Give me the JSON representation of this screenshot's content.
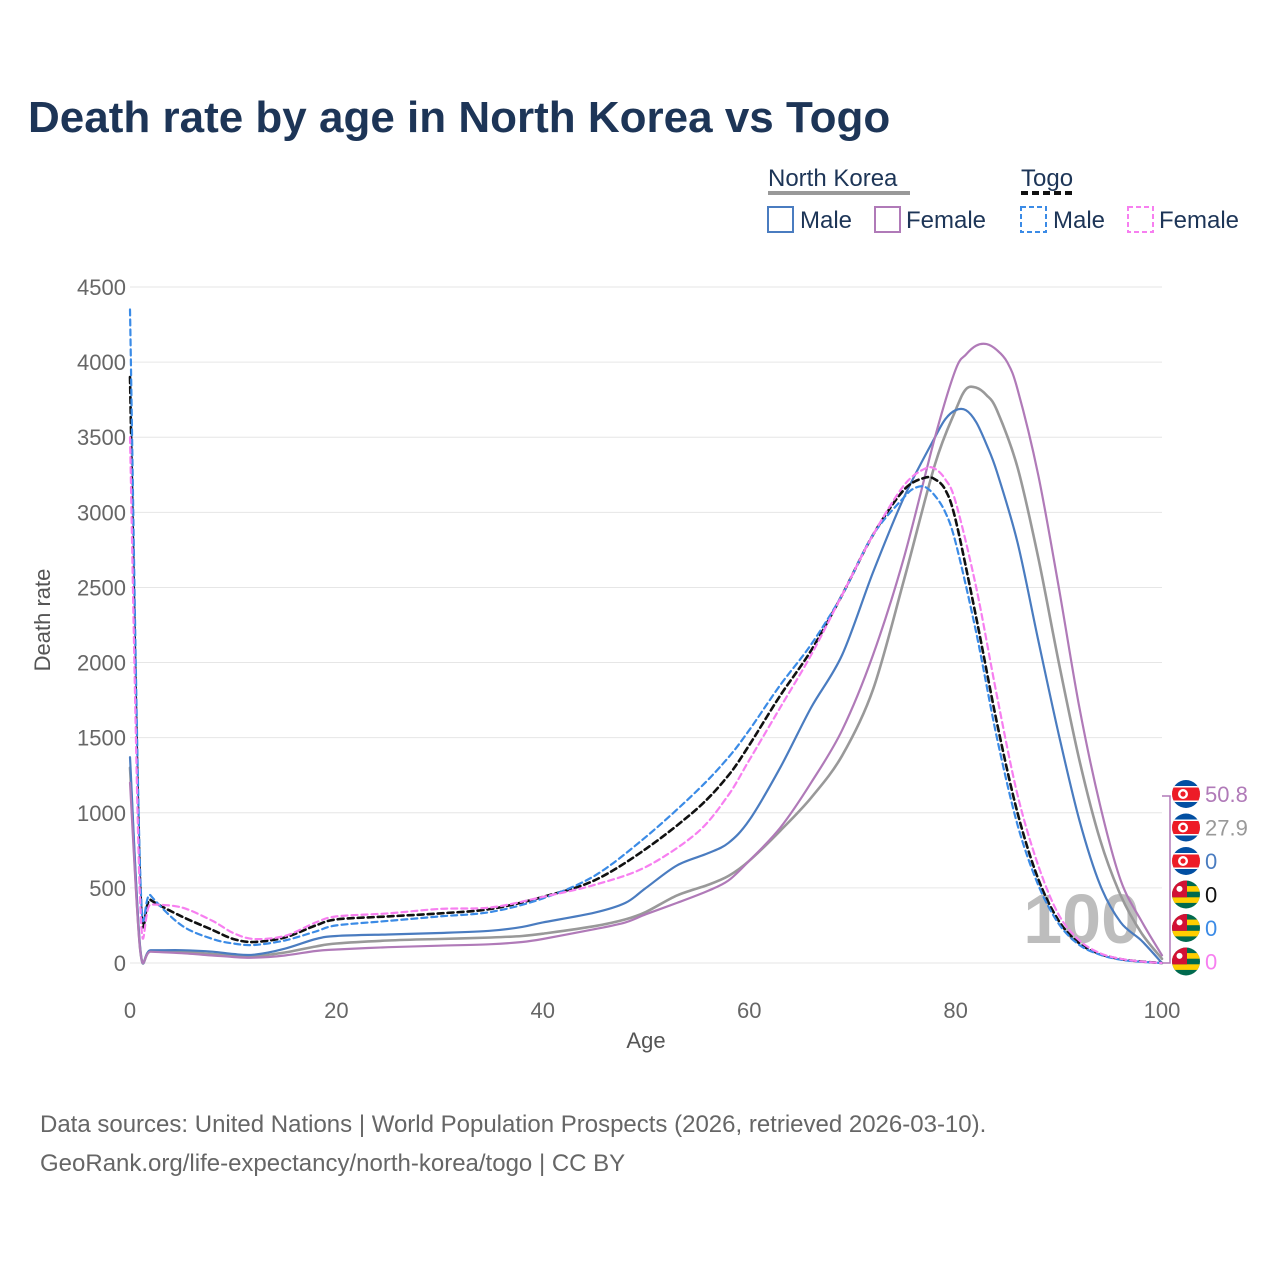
{
  "title": "Death rate by age in North Korea vs Togo",
  "legend": {
    "groups": [
      {
        "name": "North Korea",
        "items": [
          "Male",
          "Female"
        ]
      },
      {
        "name": "Togo",
        "items": [
          "Male",
          "Female"
        ]
      }
    ]
  },
  "year_label": "100",
  "footer": {
    "line1": "Data sources: United Nations | World Population Prospects (2026, retrieved 2026-03-10).",
    "line2": "GeoRank.org/life-expectancy/north-korea/togo | CC BY"
  },
  "end_labels": [
    "50.8",
    "27.9",
    "0",
    "0",
    "0",
    "0"
  ],
  "flags": [
    {
      "country": "north-korea",
      "icon": "north-korea-flag-icon"
    },
    {
      "country": "north-korea",
      "icon": "north-korea-flag-icon"
    },
    {
      "country": "north-korea",
      "icon": "north-korea-flag-icon"
    },
    {
      "country": "togo",
      "icon": "togo-flag-icon"
    },
    {
      "country": "togo",
      "icon": "togo-flag-icon"
    },
    {
      "country": "togo",
      "icon": "togo-flag-icon"
    }
  ],
  "colors": {
    "nk_male": "#4a7cc0",
    "nk_female": "#b07ab8",
    "nk_total": "#999999",
    "togo_male": "#3b8be6",
    "togo_female": "#f77ff0",
    "togo_total": "#111111",
    "title": "#1d3557"
  },
  "chart_data": {
    "type": "line",
    "title": "Death rate by age in North Korea vs Togo",
    "xlabel": "Age",
    "ylabel": "Death rate",
    "xlim": [
      0,
      100
    ],
    "ylim": [
      0,
      4500
    ],
    "xticks": [
      0,
      20,
      40,
      60,
      80,
      100
    ],
    "yticks": [
      0,
      500,
      1000,
      1500,
      2000,
      2500,
      3000,
      3500,
      4000,
      4500
    ],
    "series": [
      {
        "key": "nk_total",
        "name": "North Korea",
        "dashed": false,
        "x": [
          0,
          1,
          2,
          5,
          8,
          10,
          12,
          15,
          18,
          20,
          25,
          30,
          35,
          38,
          40,
          45,
          48,
          50,
          53,
          56,
          58,
          60,
          63,
          66,
          69,
          72,
          75,
          78,
          80,
          81,
          82,
          83,
          84,
          86,
          88,
          90,
          92,
          94,
          96,
          98,
          100
        ],
        "y": [
          1300,
          85,
          80,
          75,
          60,
          50,
          45,
          70,
          110,
          130,
          150,
          160,
          170,
          180,
          195,
          245,
          290,
          340,
          450,
          520,
          580,
          680,
          880,
          1100,
          1380,
          1820,
          2550,
          3320,
          3680,
          3820,
          3830,
          3780,
          3680,
          3300,
          2700,
          2000,
          1350,
          820,
          450,
          200,
          28
        ]
      },
      {
        "key": "nk_male",
        "name": "Male",
        "dashed": false,
        "x": [
          0,
          1,
          2,
          5,
          8,
          10,
          12,
          15,
          18,
          20,
          25,
          30,
          35,
          38,
          40,
          45,
          48,
          50,
          53,
          56,
          58,
          60,
          63,
          66,
          69,
          72,
          75,
          78,
          79,
          80,
          81,
          82,
          83,
          84,
          86,
          88,
          90,
          92,
          94,
          96,
          98,
          100
        ],
        "y": [
          1370,
          90,
          85,
          85,
          75,
          60,
          55,
          95,
          160,
          180,
          190,
          200,
          215,
          240,
          270,
          335,
          400,
          500,
          650,
          730,
          800,
          950,
          1300,
          1700,
          2050,
          2600,
          3100,
          3500,
          3620,
          3680,
          3680,
          3600,
          3450,
          3270,
          2800,
          2150,
          1520,
          950,
          520,
          270,
          150,
          0
        ]
      },
      {
        "key": "nk_female",
        "name": "Female",
        "dashed": false,
        "x": [
          0,
          1,
          2,
          5,
          8,
          10,
          12,
          15,
          18,
          20,
          25,
          30,
          35,
          38,
          40,
          45,
          48,
          50,
          53,
          56,
          58,
          60,
          63,
          66,
          69,
          72,
          75,
          78,
          80,
          81,
          82,
          83,
          84,
          85,
          86,
          88,
          90,
          92,
          94,
          96,
          98,
          100
        ],
        "y": [
          1200,
          80,
          75,
          65,
          50,
          40,
          35,
          50,
          80,
          90,
          105,
          115,
          125,
          140,
          160,
          225,
          270,
          325,
          400,
          480,
          550,
          680,
          900,
          1200,
          1550,
          2050,
          2700,
          3500,
          3950,
          4050,
          4110,
          4120,
          4080,
          4000,
          3820,
          3250,
          2500,
          1700,
          1050,
          550,
          280,
          51
        ]
      },
      {
        "key": "togo_total",
        "name": "Togo",
        "dashed": true,
        "x": [
          0,
          1,
          2,
          5,
          8,
          10,
          12,
          15,
          18,
          20,
          25,
          30,
          35,
          40,
          45,
          50,
          55,
          58,
          60,
          63,
          66,
          69,
          72,
          75,
          77,
          78,
          79,
          80,
          82,
          84,
          86,
          88,
          90,
          92,
          94,
          96,
          98,
          100
        ],
        "y": [
          3900,
          500,
          420,
          310,
          220,
          160,
          140,
          170,
          250,
          290,
          310,
          330,
          360,
          440,
          550,
          760,
          1030,
          1250,
          1450,
          1780,
          2080,
          2450,
          2850,
          3150,
          3230,
          3220,
          3150,
          2950,
          2300,
          1600,
          1000,
          560,
          280,
          130,
          60,
          25,
          10,
          0
        ]
      },
      {
        "key": "togo_male",
        "name": "Male",
        "dashed": true,
        "x": [
          0,
          1,
          2,
          5,
          8,
          10,
          12,
          15,
          18,
          20,
          25,
          30,
          35,
          40,
          45,
          50,
          55,
          58,
          60,
          63,
          66,
          69,
          72,
          75,
          76,
          77,
          78,
          79,
          80,
          82,
          84,
          86,
          88,
          90,
          92,
          94,
          96,
          98,
          100
        ],
        "y": [
          4350,
          580,
          450,
          250,
          160,
          130,
          120,
          150,
          210,
          250,
          280,
          310,
          340,
          430,
          580,
          840,
          1150,
          1370,
          1550,
          1850,
          2120,
          2450,
          2850,
          3100,
          3160,
          3170,
          3110,
          3000,
          2800,
          2200,
          1500,
          920,
          520,
          260,
          120,
          55,
          22,
          8,
          0
        ]
      },
      {
        "key": "togo_female",
        "name": "Female",
        "dashed": true,
        "x": [
          0,
          1,
          2,
          5,
          8,
          10,
          12,
          15,
          18,
          20,
          25,
          30,
          35,
          40,
          45,
          50,
          55,
          58,
          60,
          63,
          66,
          69,
          72,
          75,
          77,
          78,
          79,
          80,
          82,
          84,
          86,
          88,
          90,
          92,
          94,
          96,
          98,
          100
        ],
        "y": [
          3500,
          380,
          390,
          370,
          280,
          200,
          160,
          180,
          270,
          310,
          330,
          360,
          370,
          440,
          520,
          640,
          870,
          1120,
          1350,
          1700,
          2050,
          2450,
          2850,
          3180,
          3290,
          3290,
          3220,
          3070,
          2500,
          1780,
          1120,
          650,
          320,
          150,
          65,
          28,
          10,
          0
        ]
      }
    ]
  }
}
